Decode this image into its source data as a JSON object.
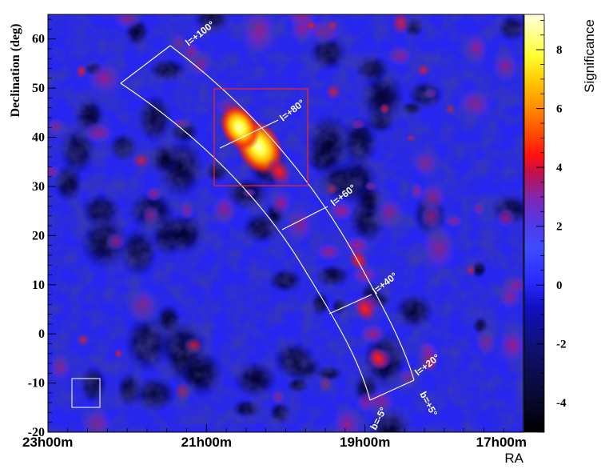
{
  "chart_data": {
    "type": "heatmap",
    "title": "",
    "xlabel": "RA",
    "ylabel": "Declination (deg)",
    "x_ticks": [
      "23h00m",
      "21h00m",
      "19h00m",
      "17h00m"
    ],
    "y_ticks": [
      60,
      50,
      40,
      30,
      20,
      10,
      0,
      -10,
      -20
    ],
    "ylim": [
      -20,
      65
    ],
    "colorbar": {
      "label": "Significance",
      "ticks": [
        8,
        6,
        4,
        2,
        0,
        -2,
        -4
      ],
      "range": [
        -5,
        9.2
      ],
      "colors": [
        "#000000",
        "#0a0a40",
        "#101080",
        "#1414c8",
        "#2a2aff",
        "#3c4cff",
        "#5030e0",
        "#7028c0",
        "#a02090",
        "#d01030",
        "#ff2000",
        "#ff6000",
        "#ff9000",
        "#ffc000",
        "#ffe000",
        "#ffff40",
        "#ffff90",
        "#ffffd0"
      ]
    },
    "galactic_labels": [
      "l=+100°",
      "l=+80°",
      "l=+60°",
      "l=+40°",
      "l=+20°",
      "b=-5°",
      "b=+5°"
    ],
    "hotspots": [
      {
        "ra": "20h20m",
        "dec": 38,
        "significance": 8.5
      },
      {
        "ra": "20h35m",
        "dec": 42,
        "significance": 6.5
      },
      {
        "ra": "20h05m",
        "dec": 33,
        "significance": 4.5
      },
      {
        "ra": "19h00m",
        "dec": 5,
        "significance": 4
      },
      {
        "ra": "18h50m",
        "dec": -5,
        "significance": 3.5
      },
      {
        "ra": "19h05m",
        "dec": 15,
        "significance": 3
      }
    ],
    "grid": false,
    "colorbar_position": "right"
  }
}
